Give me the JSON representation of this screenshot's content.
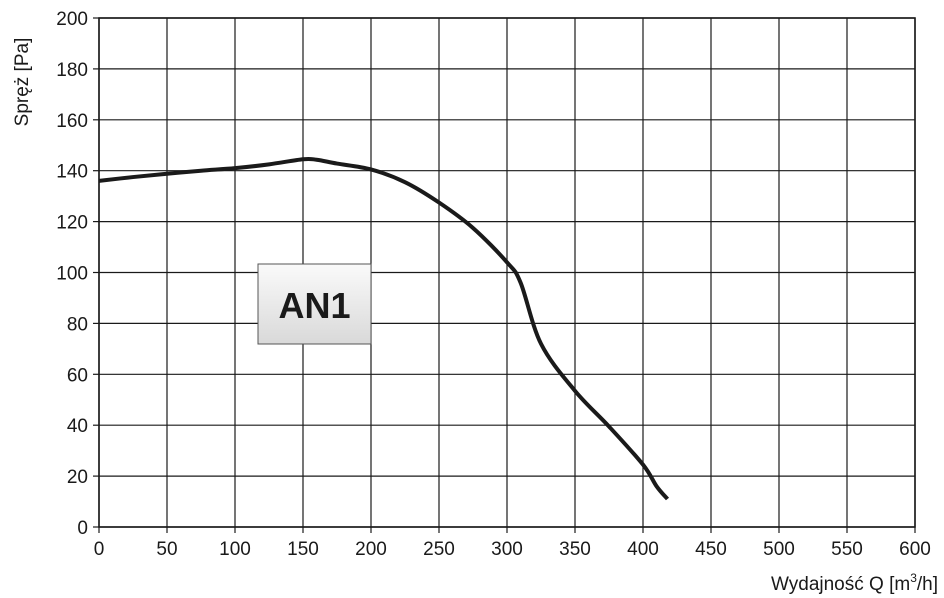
{
  "chart_data": {
    "type": "line",
    "xlabel": "Wydajność Q [m³/h]",
    "xlabel_parts": {
      "main": "Wydajność Q [m",
      "sup": "3",
      "end": "/h]"
    },
    "ylabel": "Spręż  [Pa]",
    "xlim": [
      0,
      600
    ],
    "ylim": [
      0,
      200
    ],
    "x_ticks": [
      0,
      50,
      100,
      150,
      200,
      250,
      300,
      350,
      400,
      450,
      500,
      550,
      600
    ],
    "y_ticks": [
      0,
      20,
      40,
      60,
      80,
      100,
      120,
      140,
      160,
      180,
      200
    ],
    "grid": true,
    "annotation": "AN1",
    "series": [
      {
        "x": [
          0,
          25,
          50,
          75,
          100,
          125,
          150,
          160,
          175,
          200,
          225,
          250,
          275,
          300,
          310,
          325,
          350,
          375,
          400,
          410,
          418
        ],
        "y": [
          136,
          137.5,
          138.8,
          140,
          141,
          142.5,
          144.5,
          144.3,
          142.8,
          140.5,
          135.5,
          127.5,
          117.5,
          104,
          96,
          72,
          53.5,
          39.5,
          24.5,
          16,
          11
        ],
        "color": "#1a1a1a"
      }
    ]
  }
}
